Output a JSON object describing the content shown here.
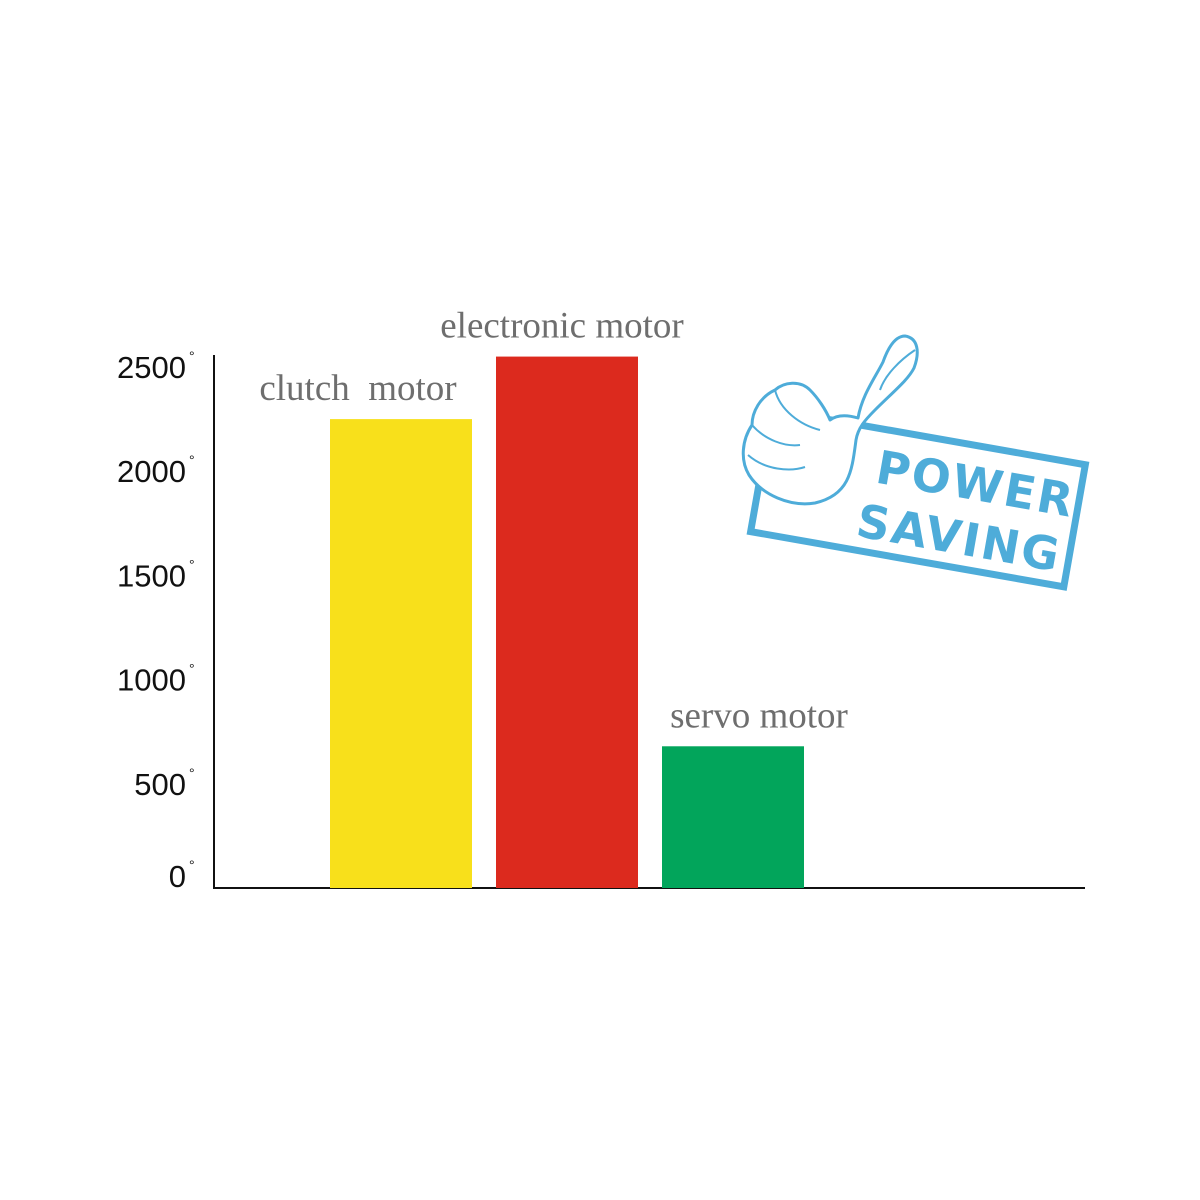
{
  "chart_data": {
    "type": "bar",
    "categories": [
      "clutch  motor",
      "electronic motor",
      "servo motor"
    ],
    "values": [
      2250,
      2550,
      680
    ],
    "colors": [
      "#f8e01b",
      "#dc2a1e",
      "#02a55b"
    ],
    "ylim": [
      0,
      2500
    ],
    "yticks": [
      0,
      500,
      1000,
      1500,
      2000,
      2500
    ],
    "ytick_labels": [
      "0",
      "500",
      "1000",
      "1500",
      "2000",
      "2500"
    ],
    "ytick_suffix": "°",
    "grid": false,
    "title": "",
    "xlabel": "",
    "ylabel": ""
  },
  "badge": {
    "line1": "POWER",
    "line2": "SAVING",
    "icon": "thumbs-up-icon",
    "color": "#4eacd9"
  }
}
